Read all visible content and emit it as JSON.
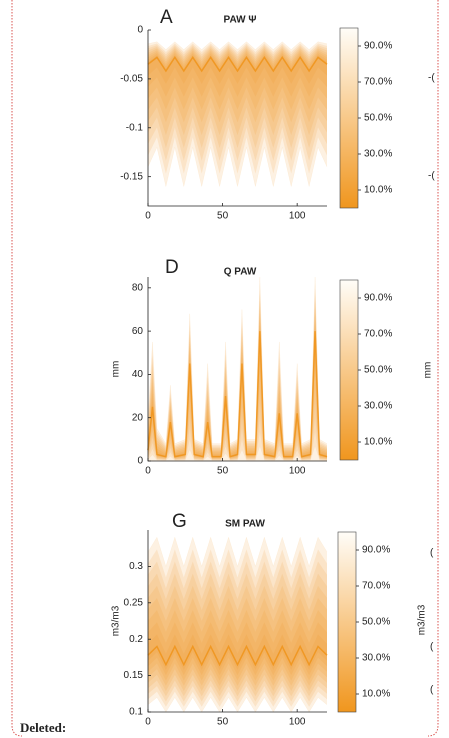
{
  "chart_data": [
    {
      "type": "fan",
      "panel": "A",
      "title": "PAW Ψ",
      "x": [
        0,
        6,
        12,
        18,
        24,
        30,
        36,
        42,
        48,
        54,
        60,
        66,
        72,
        78,
        84,
        90,
        96,
        102,
        108,
        114,
        120
      ],
      "median": [
        -0.035,
        -0.028,
        -0.042,
        -0.028,
        -0.042,
        -0.028,
        -0.042,
        -0.028,
        -0.042,
        -0.028,
        -0.042,
        -0.028,
        -0.042,
        -0.028,
        -0.042,
        -0.028,
        -0.042,
        -0.028,
        -0.042,
        -0.028,
        -0.035
      ],
      "upper": [
        -0.014,
        -0.012,
        -0.02,
        -0.012,
        -0.02,
        -0.012,
        -0.02,
        -0.012,
        -0.02,
        -0.012,
        -0.02,
        -0.012,
        -0.02,
        -0.012,
        -0.02,
        -0.012,
        -0.02,
        -0.012,
        -0.02,
        -0.012,
        -0.014
      ],
      "lower": [
        -0.14,
        -0.12,
        -0.16,
        -0.12,
        -0.16,
        -0.12,
        -0.16,
        -0.12,
        -0.16,
        -0.12,
        -0.16,
        -0.12,
        -0.16,
        -0.12,
        -0.16,
        -0.12,
        -0.16,
        -0.12,
        -0.16,
        -0.12,
        -0.14
      ],
      "color": "#f0961e",
      "xlim": [
        0,
        120
      ],
      "xticks": [
        0,
        50,
        100
      ],
      "ylim": [
        -0.18,
        0
      ],
      "yticks": [
        0,
        -0.05,
        -0.1,
        -0.15
      ],
      "clim": [
        0,
        100
      ],
      "cticks": [
        {
          "value": 90,
          "label": "90.0%"
        },
        {
          "value": 70,
          "label": "70.0%"
        },
        {
          "value": 50,
          "label": "50.0%"
        },
        {
          "value": 30,
          "label": "30.0%"
        },
        {
          "value": 10,
          "label": "10.0%"
        }
      ]
    },
    {
      "type": "fan",
      "panel": "D",
      "title": "Q PAW",
      "ylabel": "mm",
      "x": [
        0,
        3,
        6,
        12,
        15,
        18,
        25,
        28,
        31,
        37,
        40,
        43,
        49,
        52,
        55,
        60,
        63,
        66,
        72,
        75,
        78,
        85,
        88,
        91,
        97,
        100,
        103,
        109,
        112,
        115,
        120
      ],
      "median": [
        5,
        25,
        3,
        2,
        18,
        2,
        3,
        45,
        3,
        2,
        18,
        2,
        2,
        30,
        2,
        3,
        45,
        3,
        3,
        60,
        3,
        2,
        22,
        2,
        2,
        22,
        2,
        3,
        60,
        3,
        2
      ],
      "upper": [
        20,
        55,
        15,
        8,
        35,
        8,
        10,
        68,
        10,
        8,
        45,
        8,
        8,
        55,
        8,
        10,
        70,
        10,
        10,
        85,
        10,
        8,
        55,
        8,
        8,
        45,
        8,
        10,
        85,
        10,
        8
      ],
      "lower": [
        0,
        0,
        0,
        0,
        0,
        0,
        0,
        0,
        0,
        0,
        0,
        0,
        0,
        0,
        0,
        0,
        0,
        0,
        0,
        0,
        0,
        0,
        0,
        0,
        0,
        0,
        0,
        0,
        0,
        0,
        0
      ],
      "color": "#f0961e",
      "xlim": [
        0,
        120
      ],
      "xticks": [
        0,
        50,
        100
      ],
      "ylim": [
        0,
        85
      ],
      "yticks": [
        0,
        20,
        40,
        60,
        80
      ],
      "clim": [
        0,
        100
      ],
      "cticks": [
        {
          "value": 90,
          "label": "90.0%"
        },
        {
          "value": 70,
          "label": "70.0%"
        },
        {
          "value": 50,
          "label": "50.0%"
        },
        {
          "value": 30,
          "label": "30.0%"
        },
        {
          "value": 10,
          "label": "10.0%"
        }
      ]
    },
    {
      "type": "fan",
      "panel": "G",
      "title": "SM PAW",
      "ylabel": "m3/m3",
      "x": [
        0,
        6,
        12,
        18,
        24,
        30,
        36,
        42,
        48,
        54,
        60,
        66,
        72,
        78,
        84,
        90,
        96,
        102,
        108,
        114,
        120
      ],
      "median": [
        0.178,
        0.19,
        0.165,
        0.19,
        0.165,
        0.19,
        0.165,
        0.19,
        0.165,
        0.19,
        0.165,
        0.19,
        0.165,
        0.19,
        0.165,
        0.19,
        0.165,
        0.19,
        0.165,
        0.19,
        0.178
      ],
      "upper": [
        0.32,
        0.34,
        0.3,
        0.34,
        0.3,
        0.34,
        0.3,
        0.34,
        0.3,
        0.34,
        0.3,
        0.34,
        0.3,
        0.34,
        0.3,
        0.34,
        0.3,
        0.34,
        0.3,
        0.34,
        0.32
      ],
      "lower": [
        0.11,
        0.12,
        0.1,
        0.12,
        0.1,
        0.12,
        0.1,
        0.12,
        0.1,
        0.12,
        0.1,
        0.12,
        0.1,
        0.12,
        0.1,
        0.12,
        0.1,
        0.12,
        0.1,
        0.12,
        0.11
      ],
      "color": "#f0961e",
      "xlim": [
        0,
        120
      ],
      "xticks": [
        0,
        50,
        100
      ],
      "ylim": [
        0.1,
        0.35
      ],
      "yticks": [
        0.1,
        0.15,
        0.2,
        0.25,
        0.3
      ],
      "clim": [
        0,
        100
      ],
      "cticks": [
        {
          "value": 90,
          "label": "90.0%"
        },
        {
          "value": 70,
          "label": "70.0%"
        },
        {
          "value": 50,
          "label": "50.0%"
        },
        {
          "value": 30,
          "label": "30.0%"
        },
        {
          "value": 10,
          "label": "10.0%"
        }
      ]
    }
  ],
  "margin_fragments": [
    "-(",
    "-(",
    "mm",
    "m3/m3",
    "(",
    "(",
    "("
  ],
  "footer_label": "Deleted:"
}
